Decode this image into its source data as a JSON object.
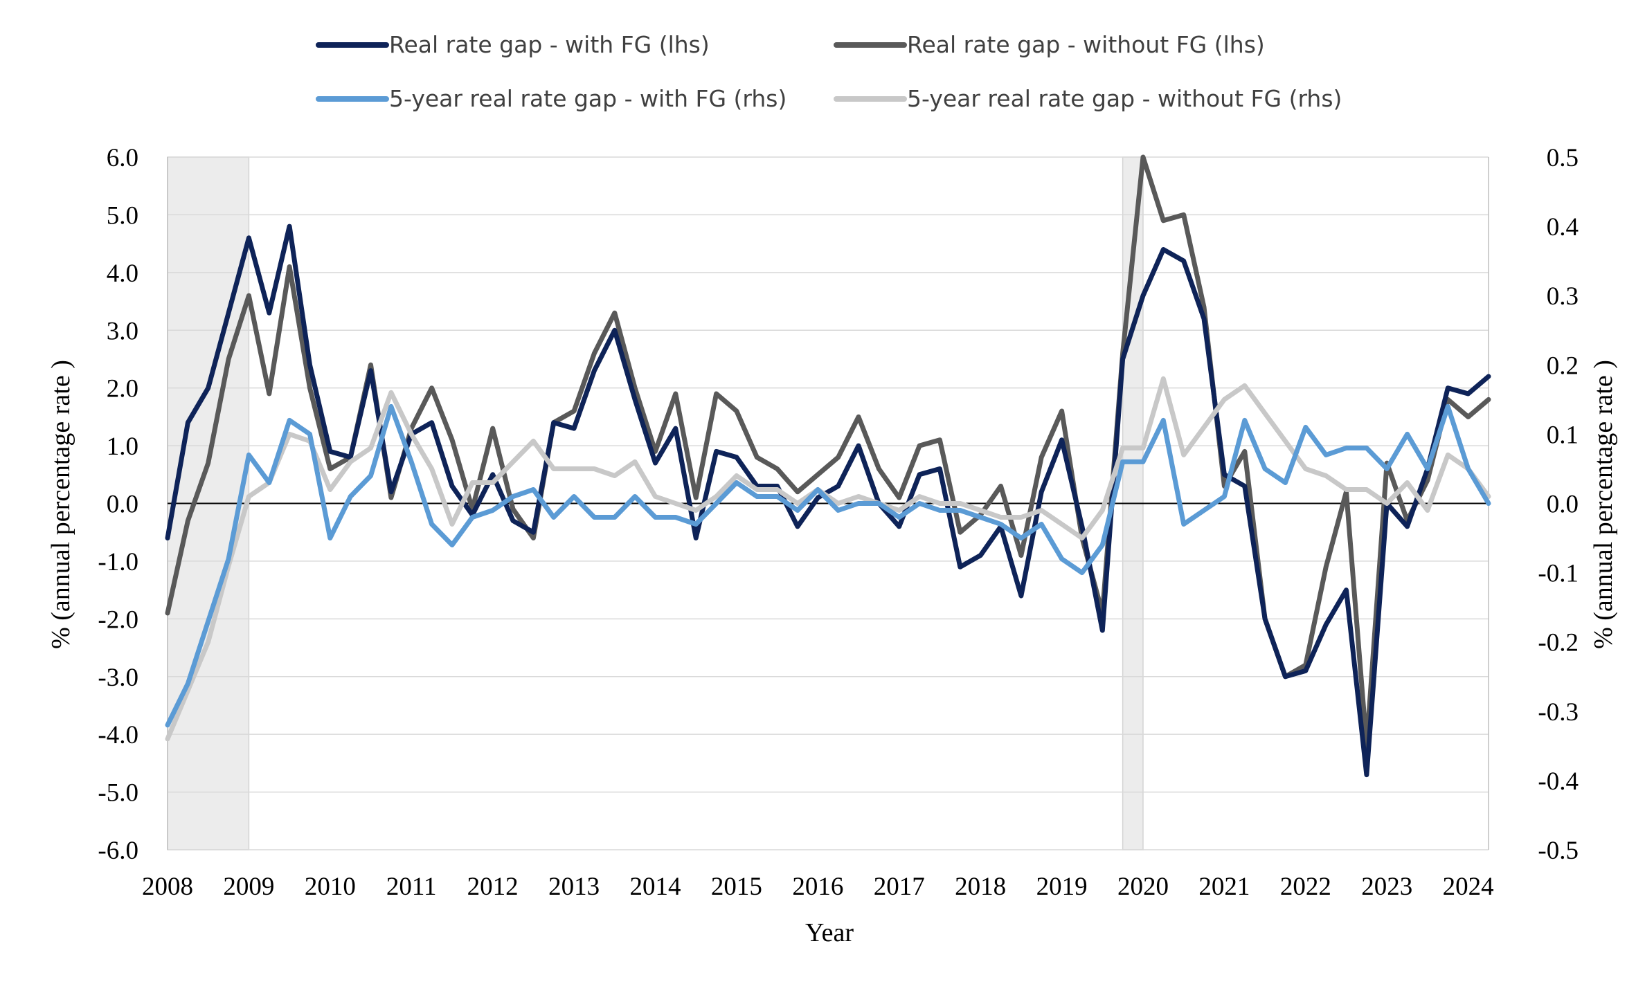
{
  "chart_data": {
    "type": "line",
    "xlabel": "Year",
    "ylabel_left": "% (annual percentage rate )",
    "ylabel_right": "% (annual percentage rate )",
    "x_ticks": [
      "2008",
      "2009",
      "2010",
      "2011",
      "2012",
      "2013",
      "2014",
      "2015",
      "2016",
      "2017",
      "2018",
      "2019",
      "2020",
      "2021",
      "2022",
      "2023",
      "2024"
    ],
    "ylim_left": [
      -6.0,
      6.0
    ],
    "ylim_right": [
      -0.5,
      0.5
    ],
    "y_ticks_left": [
      "6.0",
      "5.0",
      "4.0",
      "3.0",
      "2.0",
      "1.0",
      "0.0",
      "-1.0",
      "-2.0",
      "-3.0",
      "-4.0",
      "-5.0",
      "-6.0"
    ],
    "y_ticks_right": [
      "0.5",
      "0.4",
      "0.3",
      "0.2",
      "0.1",
      "0.0",
      "-0.1",
      "-0.2",
      "-0.3",
      "-0.4",
      "-0.5"
    ],
    "grid": "horizontal",
    "legend_position": "top",
    "shaded_periods": [
      [
        2008.0,
        2009.0
      ],
      [
        2019.75,
        2020.0
      ]
    ],
    "x": [
      2008.0,
      2008.25,
      2008.5,
      2008.75,
      2009.0,
      2009.25,
      2009.5,
      2009.75,
      2010.0,
      2010.25,
      2010.5,
      2010.75,
      2011.0,
      2011.25,
      2011.5,
      2011.75,
      2012.0,
      2012.25,
      2012.5,
      2012.75,
      2013.0,
      2013.25,
      2013.5,
      2013.75,
      2014.0,
      2014.25,
      2014.5,
      2014.75,
      2015.0,
      2015.25,
      2015.5,
      2015.75,
      2016.0,
      2016.25,
      2016.5,
      2016.75,
      2017.0,
      2017.25,
      2017.5,
      2017.75,
      2018.0,
      2018.25,
      2018.5,
      2018.75,
      2019.0,
      2019.25,
      2019.5,
      2019.75,
      2020.0,
      2020.25,
      2020.5,
      2020.75,
      2021.0,
      2021.25,
      2021.5,
      2021.75,
      2022.0,
      2022.25,
      2022.5,
      2022.75,
      2023.0,
      2023.25,
      2023.5,
      2023.75,
      2024.0,
      2024.25
    ],
    "series": [
      {
        "name": "Real rate gap - with FG (lhs)",
        "axis": "left",
        "color": "#0e2358",
        "values": [
          -0.6,
          1.4,
          2.0,
          3.3,
          4.6,
          3.3,
          4.8,
          2.4,
          0.9,
          0.8,
          2.3,
          0.2,
          1.2,
          1.4,
          0.3,
          -0.2,
          0.5,
          -0.3,
          -0.5,
          1.4,
          1.3,
          2.3,
          3.0,
          1.8,
          0.7,
          1.3,
          -0.6,
          0.9,
          0.8,
          0.3,
          0.3,
          -0.4,
          0.1,
          0.3,
          1.0,
          0.0,
          -0.4,
          0.5,
          0.6,
          -1.1,
          -0.9,
          -0.4,
          -1.6,
          0.2,
          1.1,
          -0.4,
          -2.2,
          2.5,
          3.6,
          4.4,
          4.2,
          3.2,
          0.5,
          0.3,
          -2.0,
          -3.0,
          -2.9,
          -2.1,
          -1.5,
          -4.7,
          0.0,
          -0.4,
          0.6,
          2.0,
          1.9,
          2.2
        ]
      },
      {
        "name": "Real rate gap - without FG (lhs)",
        "axis": "left",
        "color": "#595959",
        "values": [
          -1.9,
          -0.3,
          0.7,
          2.5,
          3.6,
          1.9,
          4.1,
          2.0,
          0.6,
          0.8,
          2.4,
          0.1,
          1.3,
          2.0,
          1.1,
          -0.1,
          1.3,
          -0.1,
          -0.6,
          1.4,
          1.6,
          2.6,
          3.3,
          2.0,
          0.9,
          1.9,
          0.1,
          1.9,
          1.6,
          0.8,
          0.6,
          0.2,
          0.5,
          0.8,
          1.5,
          0.6,
          0.1,
          1.0,
          1.1,
          -0.5,
          -0.2,
          0.3,
          -0.9,
          0.8,
          1.6,
          -0.6,
          -1.9,
          2.6,
          6.0,
          4.9,
          5.0,
          3.4,
          0.3,
          0.9,
          -2.0,
          -3.0,
          -2.8,
          -1.1,
          0.2,
          -4.2,
          0.7,
          -0.3,
          0.4,
          1.8,
          1.5,
          1.8
        ]
      },
      {
        "name": "5-year real rate gap - with FG (rhs)",
        "axis": "right",
        "color": "#5b9bd5",
        "values": [
          -0.32,
          -0.26,
          -0.17,
          -0.08,
          0.07,
          0.03,
          0.12,
          0.1,
          -0.05,
          0.01,
          0.04,
          0.14,
          0.06,
          -0.03,
          -0.06,
          -0.02,
          -0.01,
          0.01,
          0.02,
          -0.02,
          0.01,
          -0.02,
          -0.02,
          0.01,
          -0.02,
          -0.02,
          -0.03,
          0.0,
          0.03,
          0.01,
          0.01,
          -0.01,
          0.02,
          -0.01,
          0.0,
          0.0,
          -0.02,
          0.0,
          -0.01,
          -0.01,
          -0.02,
          -0.03,
          -0.05,
          -0.03,
          -0.08,
          -0.1,
          -0.06,
          0.06,
          0.06,
          0.12,
          -0.03,
          -0.01,
          0.01,
          0.12,
          0.05,
          0.03,
          0.11,
          0.07,
          0.08,
          0.08,
          0.05,
          0.1,
          0.05,
          0.14,
          0.05,
          0.0
        ]
      },
      {
        "name": "5-year real rate gap - without FG (rhs)",
        "axis": "right",
        "color": "#c8c8c8",
        "values": [
          -0.34,
          -0.27,
          -0.2,
          -0.09,
          0.01,
          0.03,
          0.1,
          0.09,
          0.02,
          0.06,
          0.08,
          0.16,
          0.1,
          0.05,
          -0.03,
          0.03,
          0.03,
          0.06,
          0.09,
          0.05,
          0.05,
          0.05,
          0.04,
          0.06,
          0.01,
          0.0,
          -0.01,
          0.01,
          0.04,
          0.02,
          0.02,
          0.0,
          0.02,
          0.0,
          0.01,
          0.0,
          -0.01,
          0.01,
          0.0,
          0.0,
          -0.01,
          -0.02,
          -0.02,
          -0.01,
          -0.03,
          -0.05,
          -0.01,
          0.08,
          0.08,
          0.18,
          0.07,
          0.11,
          0.15,
          0.17,
          0.13,
          0.09,
          0.05,
          0.04,
          0.02,
          0.02,
          0.0,
          0.03,
          -0.01,
          0.07,
          0.05,
          0.01
        ]
      }
    ]
  }
}
